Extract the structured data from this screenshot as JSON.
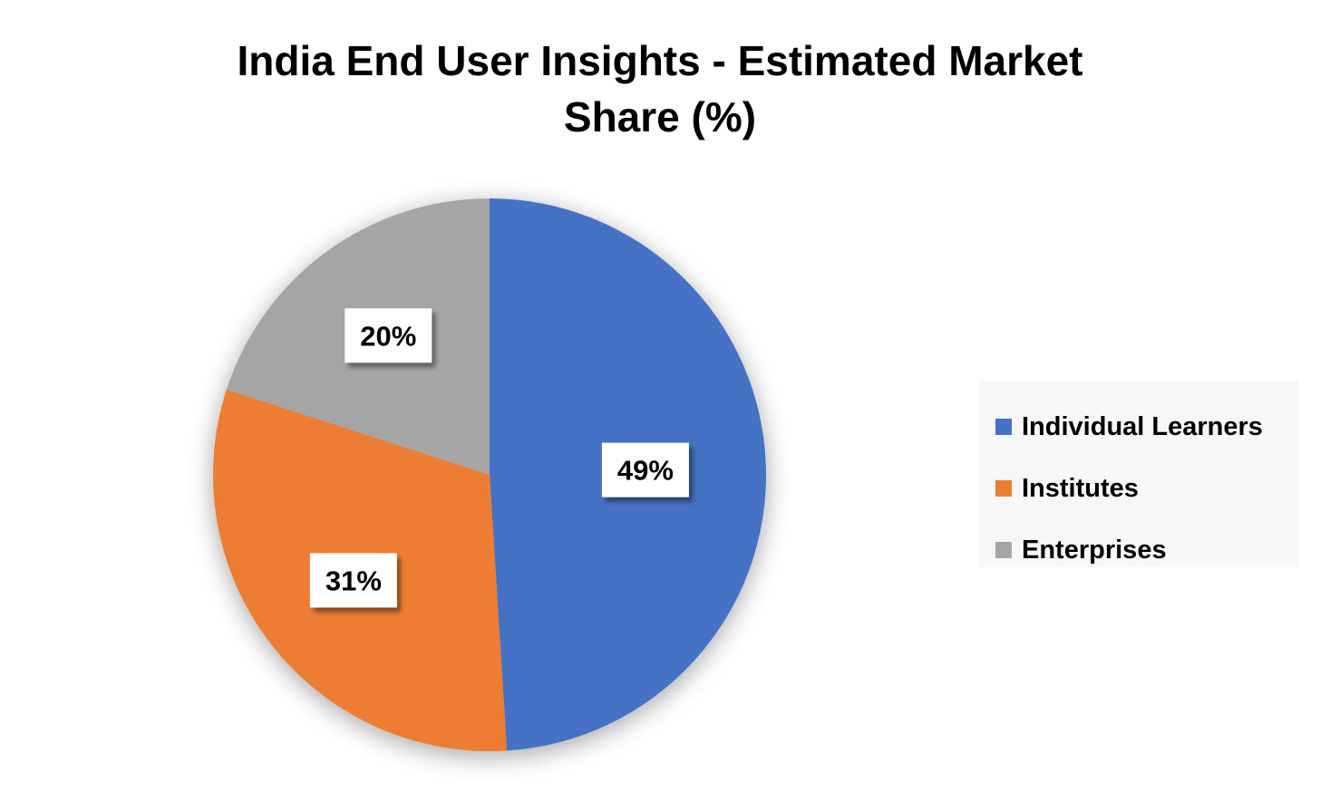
{
  "chart_data": {
    "type": "pie",
    "title": "India End User Insights - Estimated Market Share (%)",
    "categories": [
      "Individual Learners",
      "Institutes",
      "Enterprises"
    ],
    "values": [
      49,
      31,
      20
    ],
    "data_labels": [
      "49%",
      "31%",
      "20%"
    ],
    "colors": [
      "#4472c4",
      "#ed7d31",
      "#a5a5a5"
    ],
    "legend_position": "right",
    "start_angle": "top, clockwise"
  }
}
